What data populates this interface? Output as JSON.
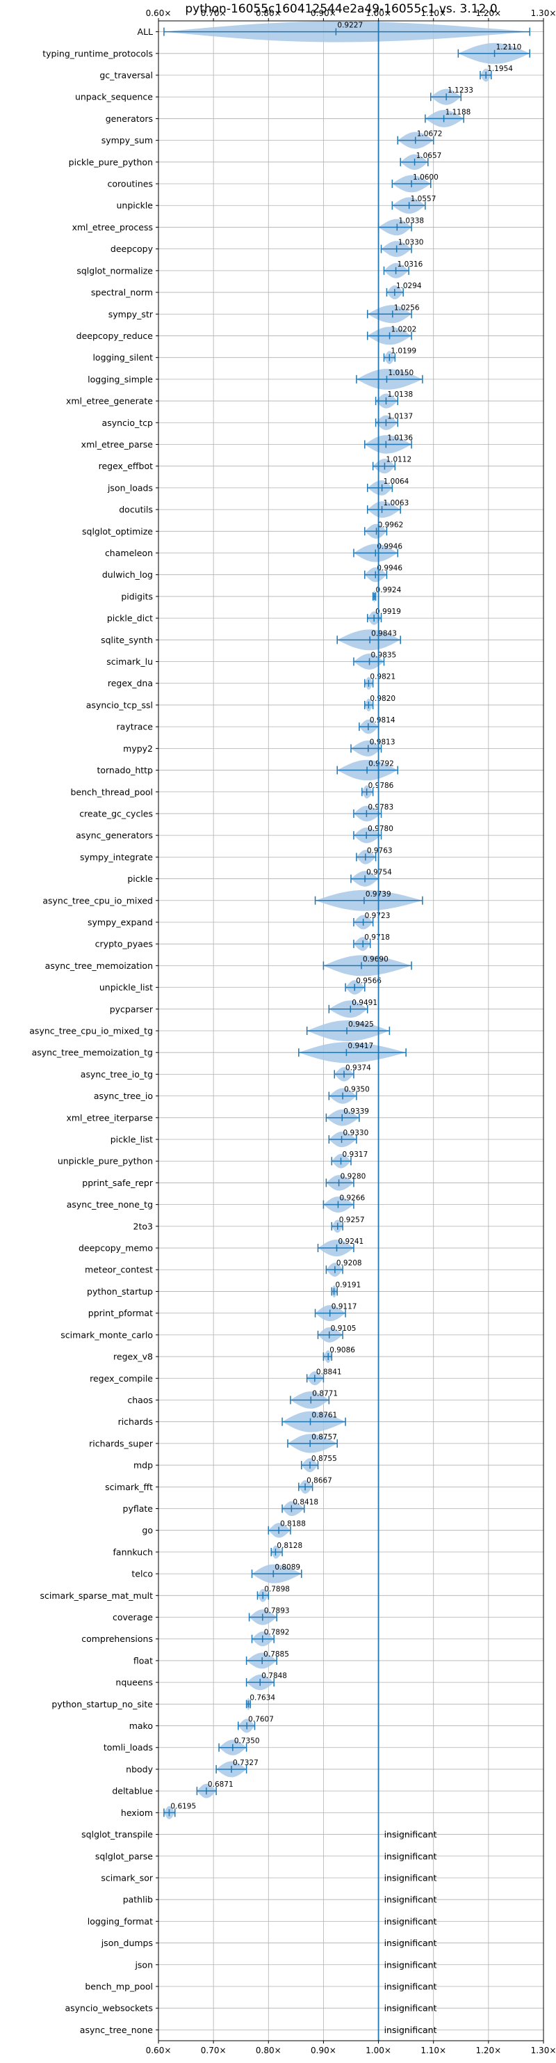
{
  "chart_data": {
    "type": "violin",
    "title": "python-16055c160412544e2a49-16055c1 vs. 3.12.0",
    "xlim": [
      0.6,
      1.3
    ],
    "xticks": [
      "0.60×",
      "0.70×",
      "0.80×",
      "0.90×",
      "1.00×",
      "1.10×",
      "1.20×",
      "1.30×"
    ],
    "grid": true,
    "reference_line": 1.0,
    "benchmarks": [
      {
        "name": "ALL",
        "value": 0.9227,
        "label": "0.9227",
        "min": 0.61,
        "max": 1.275
      },
      {
        "name": "typing_runtime_protocols",
        "value": 1.211,
        "label": "1.2110",
        "min": 1.145,
        "max": 1.275
      },
      {
        "name": "gc_traversal",
        "value": 1.1954,
        "label": "1.1954",
        "min": 1.185,
        "max": 1.205
      },
      {
        "name": "unpack_sequence",
        "value": 1.1233,
        "label": "1.1233",
        "min": 1.095,
        "max": 1.15
      },
      {
        "name": "generators",
        "value": 1.1188,
        "label": "1.1188",
        "min": 1.085,
        "max": 1.155
      },
      {
        "name": "sympy_sum",
        "value": 1.0672,
        "label": "1.0672",
        "min": 1.035,
        "max": 1.1
      },
      {
        "name": "pickle_pure_python",
        "value": 1.0657,
        "label": "1.0657",
        "min": 1.04,
        "max": 1.09
      },
      {
        "name": "coroutines",
        "value": 1.06,
        "label": "1.0600",
        "min": 1.025,
        "max": 1.095
      },
      {
        "name": "unpickle",
        "value": 1.0557,
        "label": "1.0557",
        "min": 1.025,
        "max": 1.085
      },
      {
        "name": "xml_etree_process",
        "value": 1.0338,
        "label": "1.0338",
        "min": 1.0,
        "max": 1.06
      },
      {
        "name": "deepcopy",
        "value": 1.033,
        "label": "1.0330",
        "min": 1.005,
        "max": 1.06
      },
      {
        "name": "sqlglot_normalize",
        "value": 1.0316,
        "label": "1.0316",
        "min": 1.01,
        "max": 1.055
      },
      {
        "name": "spectral_norm",
        "value": 1.0294,
        "label": "1.0294",
        "min": 1.015,
        "max": 1.045
      },
      {
        "name": "sympy_str",
        "value": 1.0256,
        "label": "1.0256",
        "min": 0.98,
        "max": 1.06
      },
      {
        "name": "deepcopy_reduce",
        "value": 1.0202,
        "label": "1.0202",
        "min": 0.98,
        "max": 1.06
      },
      {
        "name": "logging_silent",
        "value": 1.0199,
        "label": "1.0199",
        "min": 1.01,
        "max": 1.03
      },
      {
        "name": "logging_simple",
        "value": 1.015,
        "label": "1.0150",
        "min": 0.96,
        "max": 1.08
      },
      {
        "name": "xml_etree_generate",
        "value": 1.0138,
        "label": "1.0138",
        "min": 0.995,
        "max": 1.035
      },
      {
        "name": "asyncio_tcp",
        "value": 1.0137,
        "label": "1.0137",
        "min": 0.995,
        "max": 1.035
      },
      {
        "name": "xml_etree_parse",
        "value": 1.0136,
        "label": "1.0136",
        "min": 0.975,
        "max": 1.06
      },
      {
        "name": "regex_effbot",
        "value": 1.0112,
        "label": "1.0112",
        "min": 0.99,
        "max": 1.03
      },
      {
        "name": "json_loads",
        "value": 1.0064,
        "label": "1.0064",
        "min": 0.98,
        "max": 1.025
      },
      {
        "name": "docutils",
        "value": 1.0063,
        "label": "1.0063",
        "min": 0.98,
        "max": 1.04
      },
      {
        "name": "sqlglot_optimize",
        "value": 0.9962,
        "label": "0.9962",
        "min": 0.975,
        "max": 1.015
      },
      {
        "name": "chameleon",
        "value": 0.9946,
        "label": "0.9946",
        "min": 0.955,
        "max": 1.035
      },
      {
        "name": "dulwich_log",
        "value": 0.9946,
        "label": "0.9946",
        "min": 0.975,
        "max": 1.015
      },
      {
        "name": "pidigits",
        "value": 0.9924,
        "label": "0.9924",
        "min": 0.99,
        "max": 0.995
      },
      {
        "name": "pickle_dict",
        "value": 0.9919,
        "label": "0.9919",
        "min": 0.98,
        "max": 1.005
      },
      {
        "name": "sqlite_synth",
        "value": 0.9843,
        "label": "0.9843",
        "min": 0.925,
        "max": 1.04
      },
      {
        "name": "scimark_lu",
        "value": 0.9835,
        "label": "0.9835",
        "min": 0.955,
        "max": 1.01
      },
      {
        "name": "regex_dna",
        "value": 0.9821,
        "label": "0.9821",
        "min": 0.975,
        "max": 0.99
      },
      {
        "name": "asyncio_tcp_ssl",
        "value": 0.982,
        "label": "0.9820",
        "min": 0.975,
        "max": 0.99
      },
      {
        "name": "raytrace",
        "value": 0.9814,
        "label": "0.9814",
        "min": 0.965,
        "max": 1.0
      },
      {
        "name": "mypy2",
        "value": 0.9813,
        "label": "0.9813",
        "min": 0.95,
        "max": 1.005
      },
      {
        "name": "tornado_http",
        "value": 0.9792,
        "label": "0.9792",
        "min": 0.925,
        "max": 1.035
      },
      {
        "name": "bench_thread_pool",
        "value": 0.9786,
        "label": "0.9786",
        "min": 0.97,
        "max": 0.99
      },
      {
        "name": "create_gc_cycles",
        "value": 0.9783,
        "label": "0.9783",
        "min": 0.955,
        "max": 1.005
      },
      {
        "name": "async_generators",
        "value": 0.978,
        "label": "0.9780",
        "min": 0.955,
        "max": 1.005
      },
      {
        "name": "sympy_integrate",
        "value": 0.9763,
        "label": "0.9763",
        "min": 0.96,
        "max": 0.995
      },
      {
        "name": "pickle",
        "value": 0.9754,
        "label": "0.9754",
        "min": 0.95,
        "max": 1.0
      },
      {
        "name": "async_tree_cpu_io_mixed",
        "value": 0.9739,
        "label": "0.9739",
        "min": 0.885,
        "max": 1.08
      },
      {
        "name": "sympy_expand",
        "value": 0.9723,
        "label": "0.9723",
        "min": 0.955,
        "max": 0.99
      },
      {
        "name": "crypto_pyaes",
        "value": 0.9718,
        "label": "0.9718",
        "min": 0.955,
        "max": 0.985
      },
      {
        "name": "async_tree_memoization",
        "value": 0.969,
        "label": "0.9690",
        "min": 0.9,
        "max": 1.06
      },
      {
        "name": "unpickle_list",
        "value": 0.9566,
        "label": "0.9566",
        "min": 0.94,
        "max": 0.975
      },
      {
        "name": "pycparser",
        "value": 0.9491,
        "label": "0.9491",
        "min": 0.91,
        "max": 0.98
      },
      {
        "name": "async_tree_cpu_io_mixed_tg",
        "value": 0.9425,
        "label": "0.9425",
        "min": 0.87,
        "max": 1.02
      },
      {
        "name": "async_tree_memoization_tg",
        "value": 0.9417,
        "label": "0.9417",
        "min": 0.855,
        "max": 1.05
      },
      {
        "name": "async_tree_io_tg",
        "value": 0.9374,
        "label": "0.9374",
        "min": 0.92,
        "max": 0.955
      },
      {
        "name": "async_tree_io",
        "value": 0.935,
        "label": "0.9350",
        "min": 0.91,
        "max": 0.96
      },
      {
        "name": "xml_etree_iterparse",
        "value": 0.9339,
        "label": "0.9339",
        "min": 0.905,
        "max": 0.965
      },
      {
        "name": "pickle_list",
        "value": 0.933,
        "label": "0.9330",
        "min": 0.91,
        "max": 0.96
      },
      {
        "name": "unpickle_pure_python",
        "value": 0.9317,
        "label": "0.9317",
        "min": 0.915,
        "max": 0.95
      },
      {
        "name": "pprint_safe_repr",
        "value": 0.928,
        "label": "0.9280",
        "min": 0.905,
        "max": 0.955
      },
      {
        "name": "async_tree_none_tg",
        "value": 0.9266,
        "label": "0.9266",
        "min": 0.9,
        "max": 0.955
      },
      {
        "name": "2to3",
        "value": 0.9257,
        "label": "0.9257",
        "min": 0.915,
        "max": 0.935
      },
      {
        "name": "deepcopy_memo",
        "value": 0.9241,
        "label": "0.9241",
        "min": 0.89,
        "max": 0.955
      },
      {
        "name": "meteor_contest",
        "value": 0.9208,
        "label": "0.9208",
        "min": 0.905,
        "max": 0.935
      },
      {
        "name": "python_startup",
        "value": 0.9191,
        "label": "0.9191",
        "min": 0.915,
        "max": 0.925
      },
      {
        "name": "pprint_pformat",
        "value": 0.9117,
        "label": "0.9117",
        "min": 0.885,
        "max": 0.94
      },
      {
        "name": "scimark_monte_carlo",
        "value": 0.9105,
        "label": "0.9105",
        "min": 0.89,
        "max": 0.935
      },
      {
        "name": "regex_v8",
        "value": 0.9086,
        "label": "0.9086",
        "min": 0.9,
        "max": 0.915
      },
      {
        "name": "regex_compile",
        "value": 0.8841,
        "label": "0.8841",
        "min": 0.87,
        "max": 0.9
      },
      {
        "name": "chaos",
        "value": 0.8771,
        "label": "0.8771",
        "min": 0.84,
        "max": 0.91
      },
      {
        "name": "richards",
        "value": 0.8761,
        "label": "0.8761",
        "min": 0.825,
        "max": 0.94
      },
      {
        "name": "richards_super",
        "value": 0.8757,
        "label": "0.8757",
        "min": 0.835,
        "max": 0.925
      },
      {
        "name": "mdp",
        "value": 0.8755,
        "label": "0.8755",
        "min": 0.86,
        "max": 0.89
      },
      {
        "name": "scimark_fft",
        "value": 0.8667,
        "label": "0.8667",
        "min": 0.855,
        "max": 0.88
      },
      {
        "name": "pyflate",
        "value": 0.8418,
        "label": "0.8418",
        "min": 0.825,
        "max": 0.865
      },
      {
        "name": "go",
        "value": 0.8188,
        "label": "0.8188",
        "min": 0.8,
        "max": 0.84
      },
      {
        "name": "fannkuch",
        "value": 0.8128,
        "label": "0.8128",
        "min": 0.805,
        "max": 0.825
      },
      {
        "name": "telco",
        "value": 0.8089,
        "label": "0.8089",
        "min": 0.77,
        "max": 0.86
      },
      {
        "name": "scimark_sparse_mat_mult",
        "value": 0.7898,
        "label": "0.7898",
        "min": 0.78,
        "max": 0.8
      },
      {
        "name": "coverage",
        "value": 0.7893,
        "label": "0.7893",
        "min": 0.765,
        "max": 0.815
      },
      {
        "name": "comprehensions",
        "value": 0.7892,
        "label": "0.7892",
        "min": 0.77,
        "max": 0.81
      },
      {
        "name": "float",
        "value": 0.7885,
        "label": "0.7885",
        "min": 0.76,
        "max": 0.815
      },
      {
        "name": "nqueens",
        "value": 0.7848,
        "label": "0.7848",
        "min": 0.76,
        "max": 0.81
      },
      {
        "name": "python_startup_no_site",
        "value": 0.7634,
        "label": "0.7634",
        "min": 0.76,
        "max": 0.767
      },
      {
        "name": "mako",
        "value": 0.7607,
        "label": "0.7607",
        "min": 0.745,
        "max": 0.775
      },
      {
        "name": "tomli_loads",
        "value": 0.735,
        "label": "0.7350",
        "min": 0.71,
        "max": 0.76
      },
      {
        "name": "nbody",
        "value": 0.7327,
        "label": "0.7327",
        "min": 0.705,
        "max": 0.76
      },
      {
        "name": "deltablue",
        "value": 0.6871,
        "label": "0.6871",
        "min": 0.67,
        "max": 0.705
      },
      {
        "name": "hexiom",
        "value": 0.6195,
        "label": "0.6195",
        "min": 0.61,
        "max": 0.63
      },
      {
        "name": "sqlglot_transpile",
        "label": "insignificant"
      },
      {
        "name": "sqlglot_parse",
        "label": "insignificant"
      },
      {
        "name": "scimark_sor",
        "label": "insignificant"
      },
      {
        "name": "pathlib",
        "label": "insignificant"
      },
      {
        "name": "logging_format",
        "label": "insignificant"
      },
      {
        "name": "json_dumps",
        "label": "insignificant"
      },
      {
        "name": "json",
        "label": "insignificant"
      },
      {
        "name": "bench_mp_pool",
        "label": "insignificant"
      },
      {
        "name": "asyncio_websockets",
        "label": "insignificant"
      },
      {
        "name": "async_tree_none",
        "label": "insignificant"
      }
    ],
    "colors": {
      "violin_fill": "#a8c8e8",
      "line": "#1f77b4",
      "grid": "#b0b0b0",
      "axis": "#000000",
      "text": "#000000"
    }
  }
}
